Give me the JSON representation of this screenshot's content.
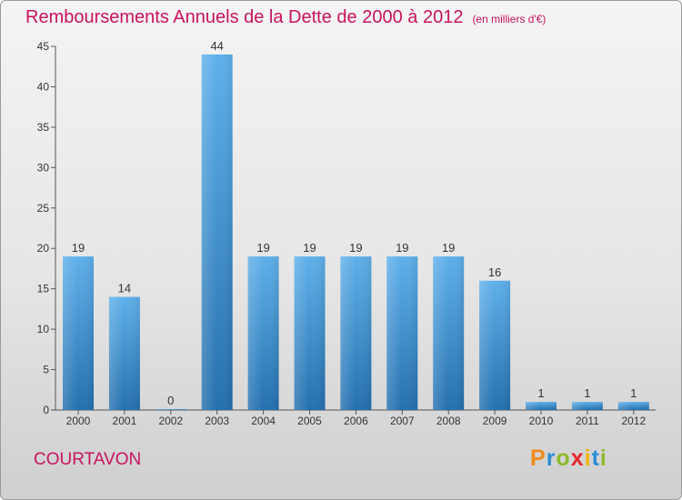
{
  "header": {
    "title": "Remboursements Annuels de la Dette de 2000 à 2012",
    "subtitle": "(en milliers d'€)"
  },
  "footer": {
    "commune": "COURTAVON",
    "logo_text": "Proxiti"
  },
  "colors": {
    "title": "#c8135f",
    "bar_top": "#5fb0ea",
    "bar_bottom": "#2470ae",
    "logo": [
      "#f08a1c",
      "#2a8fd6",
      "#8dbb2b",
      "#e8262b",
      "#f4b400",
      "#2a8fd6",
      "#8dbb2b"
    ]
  },
  "chart_data": {
    "type": "bar",
    "categories": [
      "2000",
      "2001",
      "2002",
      "2003",
      "2004",
      "2005",
      "2006",
      "2007",
      "2008",
      "2009",
      "2010",
      "2011",
      "2012"
    ],
    "values": [
      19,
      14,
      0,
      44,
      19,
      19,
      19,
      19,
      19,
      16,
      1,
      1,
      1
    ],
    "data_labels": [
      "19",
      "14",
      "0",
      "44",
      "19",
      "19",
      "19",
      "19",
      "19",
      "16",
      "1",
      "1",
      "1"
    ],
    "y_ticks": [
      0,
      5,
      10,
      15,
      20,
      25,
      30,
      35,
      40,
      45
    ],
    "ylim": [
      0,
      45
    ],
    "grid": false,
    "legend": "none"
  }
}
